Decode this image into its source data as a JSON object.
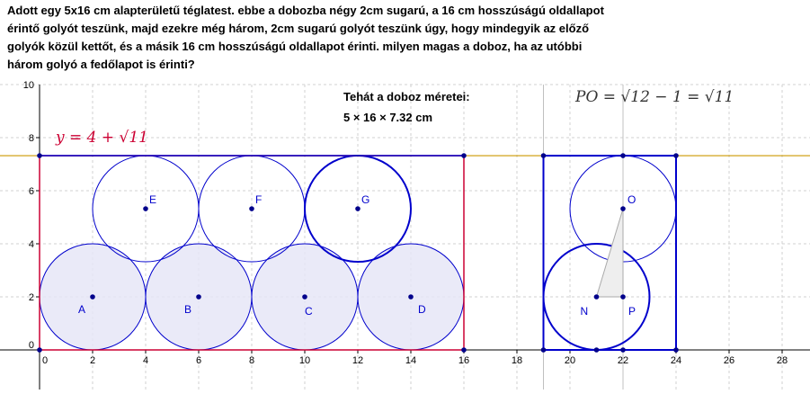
{
  "problem_text": "Adott egy 5x16 cm alapterületű téglatest. ebbe a dobozba négy 2cm sugarú, a 16 cm hosszúságú oldallapot\nérintő golyót teszünk, majd ezekre még három, 2cm sugarú golyót teszünk úgy, hogy mindegyik az előző\ngolyók közül kettőt, és a másik 16 cm hosszúságú oldallapot érinti. milyen magas a doboz, ha az utóbbi\nhárom golyó a fedőlapot is érinti?",
  "result": {
    "line1": "Tehát a doboz méretei:",
    "line2": "5 × 16 × 7.32 cm"
  },
  "equation_label": "y = 4 + √11",
  "po_label": "PO = √12 − 1 = √11",
  "colors": {
    "axis": "#000000",
    "grid": "#d0d0d0",
    "circle_stroke": "#0000cc",
    "circle_fill": "#e6e6f7",
    "point": "#00008b",
    "front_rect": "#cc0033",
    "side_rect": "#0000cc",
    "hline": "#cc9900",
    "triangle_fill": "#eeeeee",
    "triangle_stroke": "#aaaaaa",
    "label": "#0000cc"
  },
  "axes": {
    "x_ticks": [
      0,
      2,
      4,
      6,
      8,
      10,
      12,
      14,
      16,
      18,
      20,
      22,
      24,
      26,
      28
    ],
    "y_ticks": [
      0,
      2,
      4,
      6,
      8
    ],
    "y_top_partial_label": "10",
    "x_range": [
      -1.5,
      29.2
    ],
    "y_range": [
      -1.8,
      10.0
    ]
  },
  "box_height": 7.32,
  "top_line_y": 7.32,
  "front_rect": {
    "x": [
      0,
      16
    ],
    "y": [
      0,
      7.32
    ]
  },
  "side_rect": {
    "x": [
      19,
      24
    ],
    "y": [
      0,
      7.32
    ]
  },
  "vertical_lines_x": [
    19,
    22
  ],
  "bottom_circles": [
    {
      "label": "A",
      "cx": 2,
      "cy": 2,
      "r": 2
    },
    {
      "label": "B",
      "cx": 6,
      "cy": 2,
      "r": 2
    },
    {
      "label": "C",
      "cx": 10,
      "cy": 2,
      "r": 2
    },
    {
      "label": "D",
      "cx": 14,
      "cy": 2,
      "r": 2
    }
  ],
  "top_circles": [
    {
      "label": "E",
      "cx": 4,
      "cy": 5.32,
      "r": 2
    },
    {
      "label": "F",
      "cx": 8,
      "cy": 5.32,
      "r": 2
    },
    {
      "label": "G",
      "cx": 12,
      "cy": 5.32,
      "r": 2
    }
  ],
  "side_circles": [
    {
      "label": "N",
      "cx": 21,
      "cy": 2,
      "r": 2
    },
    {
      "label": "O",
      "cx": 22,
      "cy": 5.32,
      "r": 2
    }
  ],
  "side_points": [
    {
      "label": "P",
      "x": 22,
      "y": 2
    },
    {
      "label": "",
      "x": 22,
      "y": 0
    },
    {
      "label": "",
      "x": 21,
      "y": 0
    }
  ],
  "triangle": [
    [
      21,
      2
    ],
    [
      22,
      2
    ],
    [
      22,
      5.32
    ]
  ]
}
